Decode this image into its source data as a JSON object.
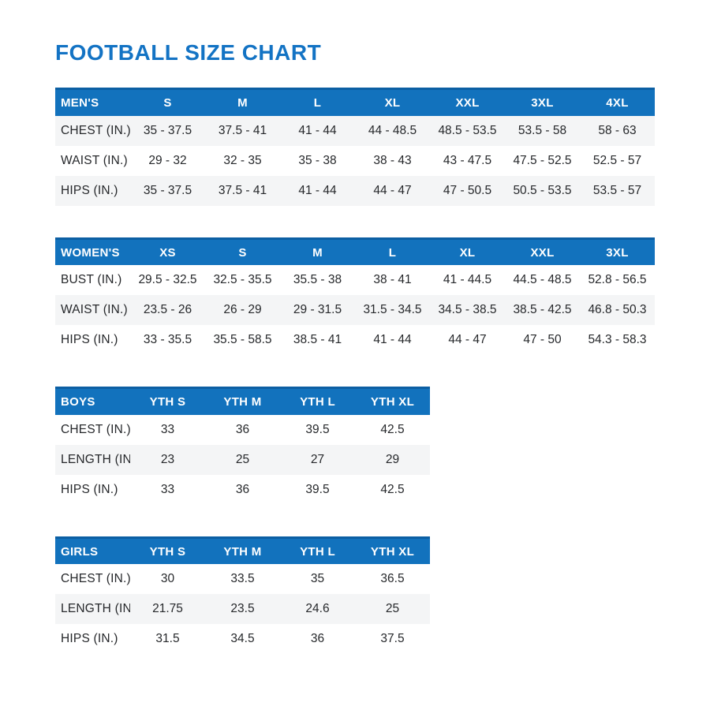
{
  "page": {
    "title": "FOOTBALL SIZE CHART"
  },
  "colors": {
    "title_blue": "#1373c4",
    "header_blue": "#1272bd",
    "header_blue_dark_edge": "#0c5fa3",
    "stripe_gray": "#f4f5f6",
    "header_text": "#ffffff",
    "body_text": "#26282b",
    "background": "#ffffff"
  },
  "chart_data": [
    {
      "type": "table",
      "id": "mens",
      "group_label": "MEN'S",
      "columns": [
        "MEN'S",
        "S",
        "M",
        "L",
        "XL",
        "XXL",
        "3XL",
        "4XL"
      ],
      "shaded_rows": [
        0,
        2
      ],
      "rows": [
        {
          "label": "CHEST (IN.)",
          "values": [
            "35 - 37.5",
            "37.5 - 41",
            "41 - 44",
            "44 - 48.5",
            "48.5 - 53.5",
            "53.5 - 58",
            "58 - 63"
          ]
        },
        {
          "label": "WAIST (IN.)",
          "values": [
            "29 - 32",
            "32 - 35",
            "35 - 38",
            "38 - 43",
            "43 - 47.5",
            "47.5 - 52.5",
            "52.5 - 57"
          ]
        },
        {
          "label": "HIPS (IN.)",
          "values": [
            "35 - 37.5",
            "37.5 - 41",
            "41 - 44",
            "44 - 47",
            "47 - 50.5",
            "50.5 - 53.5",
            "53.5 - 57"
          ]
        }
      ]
    },
    {
      "type": "table",
      "id": "womens",
      "group_label": "WOMEN'S",
      "columns": [
        "WOMEN'S",
        "XS",
        "S",
        "M",
        "L",
        "XL",
        "XXL",
        "3XL"
      ],
      "shaded_rows": [
        1
      ],
      "rows": [
        {
          "label": "BUST (IN.)",
          "values": [
            "29.5 - 32.5",
            "32.5 - 35.5",
            "35.5 - 38",
            "38 - 41",
            "41 - 44.5",
            "44.5 - 48.5",
            "52.8 - 56.5"
          ]
        },
        {
          "label": "WAIST (IN.)",
          "values": [
            "23.5 - 26",
            "26 - 29",
            "29 - 31.5",
            "31.5 - 34.5",
            "34.5 - 38.5",
            "38.5 - 42.5",
            "46.8 - 50.3"
          ]
        },
        {
          "label": "HIPS (IN.)",
          "values": [
            "33 - 35.5",
            "35.5 - 58.5",
            "38.5 - 41",
            "41 - 44",
            "44 - 47",
            "47 - 50",
            "54.3 - 58.3"
          ]
        }
      ]
    },
    {
      "type": "table",
      "id": "boys",
      "group_label": "BOYS",
      "columns": [
        "BOYS",
        "YTH S",
        "YTH M",
        "YTH L",
        "YTH XL"
      ],
      "shaded_rows": [
        1
      ],
      "rows": [
        {
          "label": "CHEST (IN.)",
          "values": [
            "33",
            "36",
            "39.5",
            "42.5"
          ]
        },
        {
          "label": "LENGTH (IN.)",
          "values": [
            "23",
            "25",
            "27",
            "29"
          ]
        },
        {
          "label": "HIPS (IN.)",
          "values": [
            "33",
            "36",
            "39.5",
            "42.5"
          ]
        }
      ]
    },
    {
      "type": "table",
      "id": "girls",
      "group_label": "GIRLS",
      "columns": [
        "GIRLS",
        "YTH S",
        "YTH M",
        "YTH L",
        "YTH XL"
      ],
      "shaded_rows": [
        1
      ],
      "rows": [
        {
          "label": "CHEST (IN.)",
          "values": [
            "30",
            "33.5",
            "35",
            "36.5"
          ]
        },
        {
          "label": "LENGTH (IN.)",
          "values": [
            "21.75",
            "23.5",
            "24.6",
            "25"
          ]
        },
        {
          "label": "HIPS (IN.)",
          "values": [
            "31.5",
            "34.5",
            "36",
            "37.5"
          ]
        }
      ]
    }
  ]
}
